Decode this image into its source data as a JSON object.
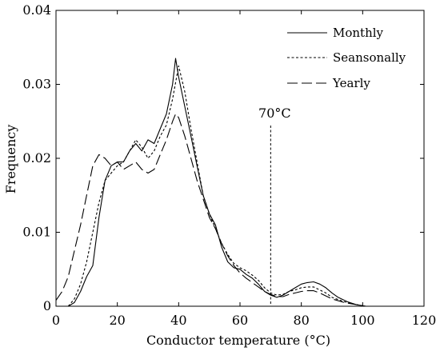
{
  "chart_data": {
    "type": "line",
    "title": "",
    "xlabel": "Conductor temperature (°C)",
    "ylabel": "Frequency",
    "xlim": [
      0,
      120
    ],
    "ylim": [
      0,
      0.04
    ],
    "x_ticks": [
      "0",
      "20",
      "40",
      "60",
      "80",
      "100",
      "120"
    ],
    "y_ticks": [
      "0",
      "0.01",
      "0.02",
      "0.03",
      "0.04"
    ],
    "grid": false,
    "legend_position": "top-right",
    "annotation": {
      "label": "70°C",
      "x": 70
    },
    "series": [
      {
        "name": "Monthly",
        "style": "solid",
        "points": [
          [
            4,
            0
          ],
          [
            6,
            0.0005
          ],
          [
            8,
            0.002
          ],
          [
            10,
            0.004
          ],
          [
            12,
            0.0055
          ],
          [
            14,
            0.012
          ],
          [
            16,
            0.017
          ],
          [
            18,
            0.019
          ],
          [
            20,
            0.0195
          ],
          [
            22,
            0.0195
          ],
          [
            24,
            0.021
          ],
          [
            26,
            0.022
          ],
          [
            28,
            0.021
          ],
          [
            30,
            0.0225
          ],
          [
            32,
            0.022
          ],
          [
            34,
            0.024
          ],
          [
            36,
            0.026
          ],
          [
            38,
            0.03
          ],
          [
            39,
            0.0335
          ],
          [
            40,
            0.031
          ],
          [
            42,
            0.027
          ],
          [
            44,
            0.023
          ],
          [
            46,
            0.019
          ],
          [
            48,
            0.015
          ],
          [
            50,
            0.0125
          ],
          [
            52,
            0.011
          ],
          [
            54,
            0.008
          ],
          [
            56,
            0.006
          ],
          [
            58,
            0.0052
          ],
          [
            60,
            0.005
          ],
          [
            62,
            0.0043
          ],
          [
            64,
            0.0038
          ],
          [
            66,
            0.003
          ],
          [
            68,
            0.002
          ],
          [
            70,
            0.0015
          ],
          [
            72,
            0.0012
          ],
          [
            74,
            0.0015
          ],
          [
            76,
            0.002
          ],
          [
            78,
            0.0025
          ],
          [
            80,
            0.003
          ],
          [
            82,
            0.0032
          ],
          [
            84,
            0.0033
          ],
          [
            86,
            0.003
          ],
          [
            88,
            0.0025
          ],
          [
            90,
            0.0018
          ],
          [
            92,
            0.0012
          ],
          [
            95,
            0.0006
          ],
          [
            98,
            0.0002
          ],
          [
            101,
            0
          ]
        ]
      },
      {
        "name": "Seansonally",
        "style": "dotted",
        "points": [
          [
            4,
            0
          ],
          [
            6,
            0.001
          ],
          [
            8,
            0.003
          ],
          [
            10,
            0.006
          ],
          [
            12,
            0.01
          ],
          [
            14,
            0.014
          ],
          [
            16,
            0.017
          ],
          [
            18,
            0.018
          ],
          [
            20,
            0.019
          ],
          [
            22,
            0.0195
          ],
          [
            24,
            0.021
          ],
          [
            26,
            0.0225
          ],
          [
            28,
            0.0215
          ],
          [
            30,
            0.02
          ],
          [
            32,
            0.021
          ],
          [
            34,
            0.023
          ],
          [
            36,
            0.0245
          ],
          [
            38,
            0.028
          ],
          [
            40,
            0.0325
          ],
          [
            42,
            0.029
          ],
          [
            44,
            0.024
          ],
          [
            46,
            0.0195
          ],
          [
            48,
            0.015
          ],
          [
            50,
            0.0125
          ],
          [
            52,
            0.0105
          ],
          [
            54,
            0.0085
          ],
          [
            56,
            0.007
          ],
          [
            58,
            0.0058
          ],
          [
            60,
            0.0052
          ],
          [
            62,
            0.0048
          ],
          [
            64,
            0.0042
          ],
          [
            66,
            0.0035
          ],
          [
            68,
            0.0025
          ],
          [
            70,
            0.0018
          ],
          [
            72,
            0.0015
          ],
          [
            74,
            0.0016
          ],
          [
            76,
            0.002
          ],
          [
            78,
            0.0022
          ],
          [
            80,
            0.0025
          ],
          [
            82,
            0.0026
          ],
          [
            84,
            0.0026
          ],
          [
            86,
            0.0022
          ],
          [
            88,
            0.0018
          ],
          [
            90,
            0.0012
          ],
          [
            94,
            0.0006
          ],
          [
            98,
            0.0002
          ],
          [
            101,
            0
          ]
        ]
      },
      {
        "name": "Yearly",
        "style": "dashed",
        "points": [
          [
            0,
            0.0008
          ],
          [
            2,
            0.002
          ],
          [
            4,
            0.004
          ],
          [
            6,
            0.0075
          ],
          [
            8,
            0.011
          ],
          [
            10,
            0.015
          ],
          [
            12,
            0.019
          ],
          [
            14,
            0.0205
          ],
          [
            16,
            0.02
          ],
          [
            18,
            0.019
          ],
          [
            20,
            0.0195
          ],
          [
            22,
            0.0185
          ],
          [
            24,
            0.019
          ],
          [
            26,
            0.0195
          ],
          [
            28,
            0.0185
          ],
          [
            30,
            0.018
          ],
          [
            32,
            0.0185
          ],
          [
            34,
            0.0205
          ],
          [
            36,
            0.0225
          ],
          [
            38,
            0.025
          ],
          [
            39,
            0.026
          ],
          [
            40,
            0.0255
          ],
          [
            42,
            0.023
          ],
          [
            44,
            0.02
          ],
          [
            46,
            0.017
          ],
          [
            48,
            0.0145
          ],
          [
            50,
            0.012
          ],
          [
            52,
            0.0105
          ],
          [
            54,
            0.0085
          ],
          [
            56,
            0.0068
          ],
          [
            58,
            0.0055
          ],
          [
            60,
            0.0045
          ],
          [
            62,
            0.0038
          ],
          [
            64,
            0.0032
          ],
          [
            66,
            0.0026
          ],
          [
            68,
            0.002
          ],
          [
            70,
            0.0016
          ],
          [
            72,
            0.0013
          ],
          [
            74,
            0.0013
          ],
          [
            76,
            0.0016
          ],
          [
            78,
            0.0018
          ],
          [
            80,
            0.002
          ],
          [
            82,
            0.0021
          ],
          [
            84,
            0.0021
          ],
          [
            86,
            0.0018
          ],
          [
            88,
            0.0014
          ],
          [
            90,
            0.001
          ],
          [
            94,
            0.0005
          ],
          [
            98,
            0.0002
          ],
          [
            101,
            0
          ]
        ]
      }
    ]
  }
}
